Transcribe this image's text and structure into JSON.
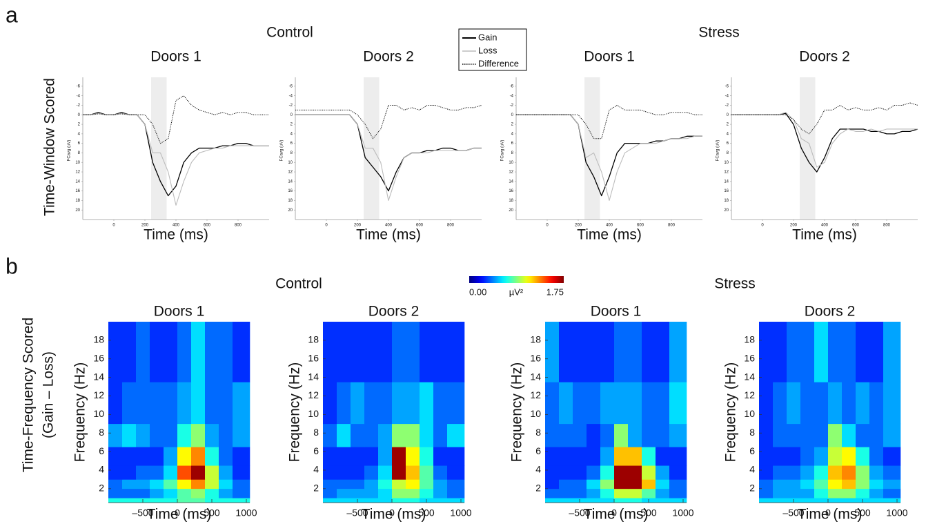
{
  "figure": {
    "panels": [
      {
        "label": "a",
        "row_label": [
          "Time-Window Scored"
        ],
        "groups": [
          "Control",
          "Stress"
        ]
      },
      {
        "label": "b",
        "row_label": [
          "Time-Frequency Scored",
          "(Gain – Loss)"
        ],
        "groups": [
          "Control",
          "Stress"
        ]
      }
    ],
    "colorbar": {
      "colormap": "jet",
      "range": [
        0,
        1.75
      ],
      "ticks": [
        {
          "value": 0,
          "label": "0.00"
        },
        {
          "value": 1.75,
          "label": "1.75"
        }
      ],
      "label": "µV²"
    }
  },
  "chart_data": [
    {
      "type": "line",
      "title": "Doors 1",
      "x_label": "Time (ms)",
      "y_label": "FCavg (uV)",
      "x": [
        -200,
        -150,
        -100,
        -50,
        0,
        50,
        100,
        150,
        200,
        250,
        300,
        350,
        400,
        450,
        500,
        550,
        600,
        650,
        700,
        750,
        800,
        850,
        900,
        950,
        1000
      ],
      "xlim": [
        -200,
        1000
      ],
      "xticks": [
        0,
        200,
        400,
        600,
        800
      ],
      "ylim": [
        -7,
        22
      ],
      "yticks": [
        -6,
        -4,
        -2,
        0,
        2,
        4,
        6,
        8,
        10,
        12,
        14,
        16,
        18,
        20
      ],
      "y_inverted": true,
      "shaded_window": [
        240,
        340
      ],
      "series": [
        {
          "name": "Gain",
          "color": "#000000",
          "dash": "solid",
          "values": [
            0,
            0,
            -0.5,
            0,
            0,
            -0.5,
            0,
            0,
            2,
            10,
            14,
            17,
            15,
            10,
            8,
            7,
            7,
            7,
            6.5,
            6.5,
            6,
            6,
            6.5,
            6.5,
            6.5
          ]
        },
        {
          "name": "Loss",
          "color": "#bbbbbb",
          "dash": "solid",
          "values": [
            0,
            0,
            -0.3,
            0,
            0,
            -0.3,
            0,
            0,
            2,
            8,
            8,
            12,
            19,
            14,
            10,
            8,
            7.5,
            7,
            7,
            6.5,
            6.5,
            6.5,
            6.5,
            6.5,
            6.5
          ]
        },
        {
          "name": "Difference",
          "color": "#000000",
          "dash": "dotted",
          "values": [
            0,
            0,
            -0.2,
            0,
            0,
            -0.2,
            0,
            0,
            0,
            2,
            6,
            5,
            -3,
            -4,
            -2,
            -1,
            -0.5,
            0,
            -0.5,
            0,
            -0.5,
            -0.5,
            0,
            0,
            0
          ]
        }
      ]
    },
    {
      "type": "line",
      "title": "Doors 2",
      "x_label": "Time (ms)",
      "y_label": "FCavg (uV)",
      "x": [
        -200,
        -150,
        -100,
        -50,
        0,
        50,
        100,
        150,
        200,
        250,
        300,
        350,
        400,
        450,
        500,
        550,
        600,
        650,
        700,
        750,
        800,
        850,
        900,
        950,
        1000
      ],
      "xlim": [
        -200,
        1000
      ],
      "xticks": [
        0,
        200,
        400,
        600,
        800
      ],
      "ylim": [
        -7,
        22
      ],
      "yticks": [
        -6,
        -4,
        -2,
        0,
        2,
        4,
        6,
        8,
        10,
        12,
        14,
        16,
        18,
        20
      ],
      "y_inverted": true,
      "shaded_window": [
        240,
        340
      ],
      "series": [
        {
          "name": "Gain",
          "color": "#000000",
          "dash": "solid",
          "values": [
            0,
            0,
            0,
            0,
            0,
            0,
            0,
            0,
            2,
            9,
            11,
            13,
            16,
            12,
            9,
            8,
            8,
            7.5,
            7.5,
            7,
            7,
            7.5,
            7.5,
            7,
            7
          ]
        },
        {
          "name": "Loss",
          "color": "#bbbbbb",
          "dash": "solid",
          "values": [
            0,
            0,
            0,
            0,
            0,
            0,
            0,
            0,
            2,
            7,
            7,
            10,
            18,
            13,
            9,
            8,
            8,
            8,
            7.5,
            7.5,
            7.5,
            7.5,
            7.5,
            7,
            7
          ]
        },
        {
          "name": "Difference",
          "color": "#000000",
          "dash": "dotted",
          "values": [
            -1,
            -1,
            -1,
            -1,
            -1,
            -1,
            -1,
            -1,
            0,
            2,
            5,
            3,
            -2,
            -2,
            -1,
            -1.5,
            -1,
            -2,
            -2,
            -1.5,
            -1,
            -1,
            -1.5,
            -1.5,
            -2
          ]
        }
      ]
    },
    {
      "type": "line",
      "title": "Doors 1",
      "x_label": "Time (ms)",
      "y_label": "FCavg (uV)",
      "x": [
        -200,
        -150,
        -100,
        -50,
        0,
        50,
        100,
        150,
        200,
        250,
        300,
        350,
        400,
        450,
        500,
        550,
        600,
        650,
        700,
        750,
        800,
        850,
        900,
        950,
        1000
      ],
      "xlim": [
        -200,
        1000
      ],
      "xticks": [
        0,
        200,
        400,
        600,
        800
      ],
      "ylim": [
        -7,
        22
      ],
      "yticks": [
        -6,
        -4,
        -2,
        0,
        2,
        4,
        6,
        8,
        10,
        12,
        14,
        16,
        18,
        20
      ],
      "y_inverted": true,
      "shaded_window": [
        240,
        340
      ],
      "series": [
        {
          "name": "Gain",
          "color": "#000000",
          "dash": "solid",
          "values": [
            0,
            0,
            0,
            0,
            0,
            0,
            0,
            0,
            2,
            10,
            13,
            17,
            13,
            8,
            6,
            6,
            6,
            6,
            5.5,
            5.5,
            5,
            5,
            4.5,
            4.5,
            4.5
          ]
        },
        {
          "name": "Loss",
          "color": "#bbbbbb",
          "dash": "solid",
          "values": [
            0,
            0,
            0,
            0,
            0,
            0,
            0,
            0,
            2,
            9,
            8,
            12,
            18,
            12,
            8,
            7,
            6,
            6,
            6,
            5.5,
            5,
            5,
            5,
            4.5,
            4.5
          ]
        },
        {
          "name": "Difference",
          "color": "#000000",
          "dash": "dotted",
          "values": [
            0,
            0,
            0,
            0,
            0,
            0,
            0,
            0,
            0,
            2,
            5,
            5,
            -1,
            -2,
            -1,
            -1,
            -1,
            -0.5,
            0,
            0,
            -0.5,
            -0.5,
            -0.5,
            0,
            0
          ]
        }
      ]
    },
    {
      "type": "line",
      "title": "Doors 2",
      "x_label": "Time (ms)",
      "y_label": "FCavg (uV)",
      "x": [
        -200,
        -150,
        -100,
        -50,
        0,
        50,
        100,
        150,
        200,
        250,
        300,
        350,
        400,
        450,
        500,
        550,
        600,
        650,
        700,
        750,
        800,
        850,
        900,
        950,
        1000
      ],
      "xlim": [
        -200,
        1000
      ],
      "xticks": [
        0,
        200,
        400,
        600,
        800
      ],
      "ylim": [
        -7,
        22
      ],
      "yticks": [
        -6,
        -4,
        -2,
        0,
        2,
        4,
        6,
        8,
        10,
        12,
        14,
        16,
        18,
        20
      ],
      "y_inverted": true,
      "shaded_window": [
        240,
        340
      ],
      "series": [
        {
          "name": "Gain",
          "color": "#000000",
          "dash": "solid",
          "values": [
            0,
            0,
            0,
            0,
            0,
            0,
            0,
            -0.3,
            2,
            7,
            10,
            12,
            9,
            5,
            3,
            3,
            3,
            3,
            3.5,
            3.5,
            4,
            4,
            3.5,
            3.5,
            3
          ]
        },
        {
          "name": "Loss",
          "color": "#bbbbbb",
          "dash": "solid",
          "values": [
            0,
            0,
            0,
            0,
            0,
            0,
            0,
            -0.5,
            1,
            5,
            6,
            11,
            10,
            6,
            4,
            3,
            3.5,
            3.5,
            3,
            3.5,
            3,
            3,
            3,
            3,
            3
          ]
        },
        {
          "name": "Difference",
          "color": "#000000",
          "dash": "dotted",
          "values": [
            0,
            0,
            0,
            0,
            0,
            0,
            0,
            0,
            1,
            3,
            4,
            2,
            -1,
            -1,
            -2,
            -1,
            -1.5,
            -1,
            -1,
            -1.5,
            -1,
            -2,
            -2,
            -2.5,
            -2
          ]
        }
      ]
    },
    {
      "type": "heatmap",
      "title": "Doors 1",
      "x_label": "Time (ms)",
      "y_label": "Frequency (Hz)",
      "xlim": [
        -1000,
        1050
      ],
      "xticks": [
        {
          "value": -500,
          "label": "–500"
        },
        0,
        500,
        1000
      ],
      "ylim": [
        0.5,
        20
      ],
      "yticks": [
        2,
        4,
        6,
        8,
        10,
        12,
        14,
        16,
        18
      ],
      "x_bins": [
        -1000,
        -800,
        -600,
        -400,
        -200,
        0,
        200,
        400,
        600,
        800,
        1050
      ],
      "y_bins": [
        0.5,
        1,
        2,
        3,
        4.5,
        6.5,
        9,
        13.5,
        20
      ],
      "values": [
        [
          0.7,
          0.7,
          0.7,
          0.7,
          0.7,
          0.8,
          0.8,
          0.7,
          0.7,
          0.7
        ],
        [
          0.4,
          0.4,
          0.4,
          0.5,
          0.6,
          0.8,
          0.9,
          0.7,
          0.5,
          0.4
        ],
        [
          0.4,
          0.5,
          0.5,
          0.6,
          0.8,
          1.1,
          1.3,
          1.0,
          0.6,
          0.4
        ],
        [
          0.3,
          0.3,
          0.4,
          0.4,
          0.6,
          1.4,
          1.7,
          1.0,
          0.5,
          0.3
        ],
        [
          0.3,
          0.3,
          0.3,
          0.3,
          0.5,
          1.1,
          1.3,
          0.7,
          0.4,
          0.3
        ],
        [
          0.5,
          0.6,
          0.5,
          0.4,
          0.4,
          0.7,
          0.9,
          0.5,
          0.4,
          0.5
        ],
        [
          0.3,
          0.4,
          0.4,
          0.4,
          0.4,
          0.5,
          0.6,
          0.4,
          0.4,
          0.5
        ],
        [
          0.3,
          0.3,
          0.4,
          0.3,
          0.3,
          0.4,
          0.6,
          0.4,
          0.4,
          0.3
        ]
      ]
    },
    {
      "type": "heatmap",
      "title": "Doors 2",
      "x_label": "Time (ms)",
      "y_label": "Frequency (Hz)",
      "xlim": [
        -1000,
        1050
      ],
      "xticks": [
        {
          "value": -500,
          "label": "–500"
        },
        0,
        500,
        1000
      ],
      "ylim": [
        0.5,
        20
      ],
      "yticks": [
        2,
        4,
        6,
        8,
        10,
        12,
        14,
        16,
        18
      ],
      "x_bins": [
        -1000,
        -800,
        -600,
        -400,
        -200,
        0,
        200,
        400,
        600,
        800,
        1050
      ],
      "y_bins": [
        0.5,
        1,
        2,
        3,
        4.5,
        6.5,
        9,
        13.5,
        20
      ],
      "values": [
        [
          0.6,
          0.6,
          0.6,
          0.6,
          0.6,
          0.7,
          0.7,
          0.6,
          0.6,
          0.6
        ],
        [
          0.4,
          0.5,
          0.5,
          0.5,
          0.6,
          0.9,
          0.9,
          0.7,
          0.5,
          0.4
        ],
        [
          0.4,
          0.4,
          0.4,
          0.5,
          0.7,
          1.0,
          1.1,
          0.8,
          0.5,
          0.4
        ],
        [
          0.3,
          0.3,
          0.3,
          0.4,
          0.6,
          1.7,
          1.2,
          0.8,
          0.4,
          0.3
        ],
        [
          0.3,
          0.3,
          0.3,
          0.3,
          0.5,
          1.7,
          1.1,
          0.7,
          0.3,
          0.3
        ],
        [
          0.4,
          0.6,
          0.4,
          0.4,
          0.5,
          0.9,
          0.9,
          0.6,
          0.4,
          0.6
        ],
        [
          0.3,
          0.4,
          0.5,
          0.4,
          0.4,
          0.5,
          0.5,
          0.6,
          0.4,
          0.4
        ],
        [
          0.3,
          0.3,
          0.3,
          0.3,
          0.3,
          0.4,
          0.4,
          0.3,
          0.3,
          0.3
        ]
      ]
    },
    {
      "type": "heatmap",
      "title": "Doors 1",
      "x_label": "Time (ms)",
      "y_label": "Frequency (Hz)",
      "xlim": [
        -1000,
        1050
      ],
      "xticks": [
        {
          "value": -500,
          "label": "–500"
        },
        0,
        500,
        1000
      ],
      "ylim": [
        0.5,
        20
      ],
      "yticks": [
        2,
        4,
        6,
        8,
        10,
        12,
        14,
        16,
        18
      ],
      "x_bins": [
        -1000,
        -800,
        -600,
        -400,
        -200,
        0,
        200,
        400,
        600,
        800,
        1050
      ],
      "y_bins": [
        0.5,
        1,
        2,
        3,
        4.5,
        6.5,
        9,
        13.5,
        20
      ],
      "values": [
        [
          0.6,
          0.6,
          0.6,
          0.6,
          0.6,
          0.7,
          0.7,
          0.6,
          0.6,
          0.6
        ],
        [
          0.4,
          0.4,
          0.4,
          0.5,
          0.7,
          1.0,
          1.0,
          0.8,
          0.5,
          0.4
        ],
        [
          0.3,
          0.4,
          0.4,
          0.6,
          0.9,
          1.7,
          1.7,
          1.2,
          0.6,
          0.4
        ],
        [
          0.3,
          0.3,
          0.3,
          0.4,
          0.7,
          1.7,
          1.7,
          1.0,
          0.5,
          0.3
        ],
        [
          0.3,
          0.3,
          0.3,
          0.3,
          0.5,
          1.2,
          1.2,
          0.7,
          0.3,
          0.3
        ],
        [
          0.4,
          0.4,
          0.4,
          0.3,
          0.4,
          0.9,
          0.5,
          0.4,
          0.4,
          0.5
        ],
        [
          0.4,
          0.5,
          0.4,
          0.4,
          0.5,
          0.5,
          0.5,
          0.4,
          0.4,
          0.6
        ],
        [
          0.5,
          0.3,
          0.3,
          0.3,
          0.3,
          0.4,
          0.4,
          0.3,
          0.3,
          0.5
        ]
      ]
    },
    {
      "type": "heatmap",
      "title": "Doors 2",
      "x_label": "Time (ms)",
      "y_label": "Frequency (Hz)",
      "xlim": [
        -1000,
        1050
      ],
      "xticks": [
        {
          "value": -500,
          "label": "–500"
        },
        0,
        500,
        1000
      ],
      "ylim": [
        0.5,
        20
      ],
      "yticks": [
        2,
        4,
        6,
        8,
        10,
        12,
        14,
        16,
        18
      ],
      "x_bins": [
        -1000,
        -800,
        -600,
        -400,
        -200,
        0,
        200,
        400,
        600,
        800,
        1050
      ],
      "y_bins": [
        0.5,
        1,
        2,
        3,
        4.5,
        6.5,
        9,
        13.5,
        20
      ],
      "values": [
        [
          0.6,
          0.6,
          0.6,
          0.6,
          0.6,
          0.6,
          0.6,
          0.6,
          0.6,
          0.6
        ],
        [
          0.4,
          0.5,
          0.5,
          0.5,
          0.7,
          0.9,
          0.9,
          0.7,
          0.5,
          0.4
        ],
        [
          0.4,
          0.5,
          0.5,
          0.6,
          0.8,
          1.1,
          1.2,
          0.9,
          0.6,
          0.5
        ],
        [
          0.3,
          0.4,
          0.4,
          0.5,
          0.7,
          1.2,
          1.3,
          0.9,
          0.5,
          0.4
        ],
        [
          0.3,
          0.3,
          0.3,
          0.4,
          0.5,
          1.0,
          1.1,
          0.7,
          0.4,
          0.3
        ],
        [
          0.3,
          0.4,
          0.4,
          0.4,
          0.4,
          0.9,
          0.6,
          0.4,
          0.4,
          0.5
        ],
        [
          0.3,
          0.4,
          0.5,
          0.4,
          0.4,
          0.5,
          0.4,
          0.5,
          0.4,
          0.5
        ],
        [
          0.3,
          0.3,
          0.4,
          0.4,
          0.6,
          0.4,
          0.4,
          0.3,
          0.3,
          0.5
        ]
      ]
    }
  ]
}
